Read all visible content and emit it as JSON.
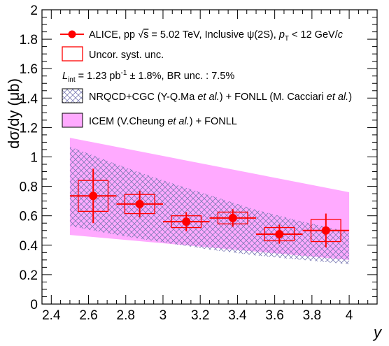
{
  "chart_data": {
    "type": "scatter",
    "xlabel": "y",
    "ylabel": "dσ/dy (μb)",
    "xlim": [
      2.35,
      4.15
    ],
    "ylim": [
      0,
      2
    ],
    "x_ticks": [
      "2.4",
      "2.6",
      "2.8",
      "3",
      "3.2",
      "3.4",
      "3.6",
      "3.8",
      "4"
    ],
    "y_ticks": [
      "0",
      "0.2",
      "0.4",
      "0.6",
      "0.8",
      "1",
      "1.2",
      "1.4",
      "1.6",
      "1.8",
      "2"
    ],
    "data_series": {
      "name": "ALICE, pp √s = 5.02 TeV, Inclusive ψ(2S), pT < 12 GeV/c",
      "color": "#ff0000",
      "points": [
        {
          "x": 2.625,
          "y": 0.735,
          "x_low": 2.5,
          "x_high": 2.75,
          "stat_err": 0.185,
          "syst_err": 0.105
        },
        {
          "x": 2.875,
          "y": 0.68,
          "x_low": 2.75,
          "x_high": 3.0,
          "stat_err": 0.09,
          "syst_err": 0.065
        },
        {
          "x": 3.125,
          "y": 0.56,
          "x_low": 3.0,
          "x_high": 3.25,
          "stat_err": 0.065,
          "syst_err": 0.04
        },
        {
          "x": 3.375,
          "y": 0.585,
          "x_low": 3.25,
          "x_high": 3.5,
          "stat_err": 0.06,
          "syst_err": 0.04
        },
        {
          "x": 3.625,
          "y": 0.475,
          "x_low": 3.5,
          "x_high": 3.75,
          "stat_err": 0.065,
          "syst_err": 0.045
        },
        {
          "x": 3.875,
          "y": 0.5,
          "x_low": 3.75,
          "x_high": 4.0,
          "stat_err": 0.115,
          "syst_err": 0.075
        }
      ]
    },
    "bands": [
      {
        "name": "ICEM",
        "label": "ICEM (V.Cheung et al.) + FONLL",
        "color": "#ffaaff",
        "x": [
          2.5,
          4.0
        ],
        "upper": [
          1.13,
          0.76
        ],
        "lower": [
          0.47,
          0.3
        ]
      },
      {
        "name": "NRQCD",
        "label": "NRQCD+CGC (Y-Q.Ma et al.) + FONLL (M. Cacciari et al.)",
        "hatch_color": "#7a7ab4",
        "x": [
          2.5,
          2.75,
          3.0,
          3.25,
          3.5,
          3.75,
          4.0
        ],
        "upper": [
          1.07,
          0.95,
          0.84,
          0.74,
          0.64,
          0.56,
          0.49
        ],
        "lower": [
          0.53,
          0.47,
          0.42,
          0.37,
          0.33,
          0.3,
          0.27
        ]
      }
    ],
    "legend": {
      "placement": "top-left",
      "data_label_pre": "ALICE, pp ",
      "data_label_sqrt": "s",
      "data_label_mid": " = 5.02 TeV, Inclusive ψ(2S), ",
      "data_label_p": "p",
      "data_label_sub": "T",
      "data_label_post": " < 12 GeV/",
      "data_label_c": "c",
      "syst_label": "Uncor. syst. unc.",
      "lumi_L": "L",
      "lumi_sub": "int",
      "lumi_val": " = 1.23 pb",
      "lumi_sup": "-1",
      "lumi_rest": " ± 1.8%, BR unc. : 7.5%",
      "nrqcd_pre": "NRQCD+CGC (Y-Q.Ma ",
      "nrqcd_etal1": "et al.",
      "nrqcd_mid": ") + FONLL (M. Cacciari ",
      "nrqcd_etal2": "et al.",
      "nrqcd_post": ")",
      "icem_pre": "ICEM (V.Cheung ",
      "icem_etal": "et al.",
      "icem_post": ") + FONLL"
    }
  }
}
